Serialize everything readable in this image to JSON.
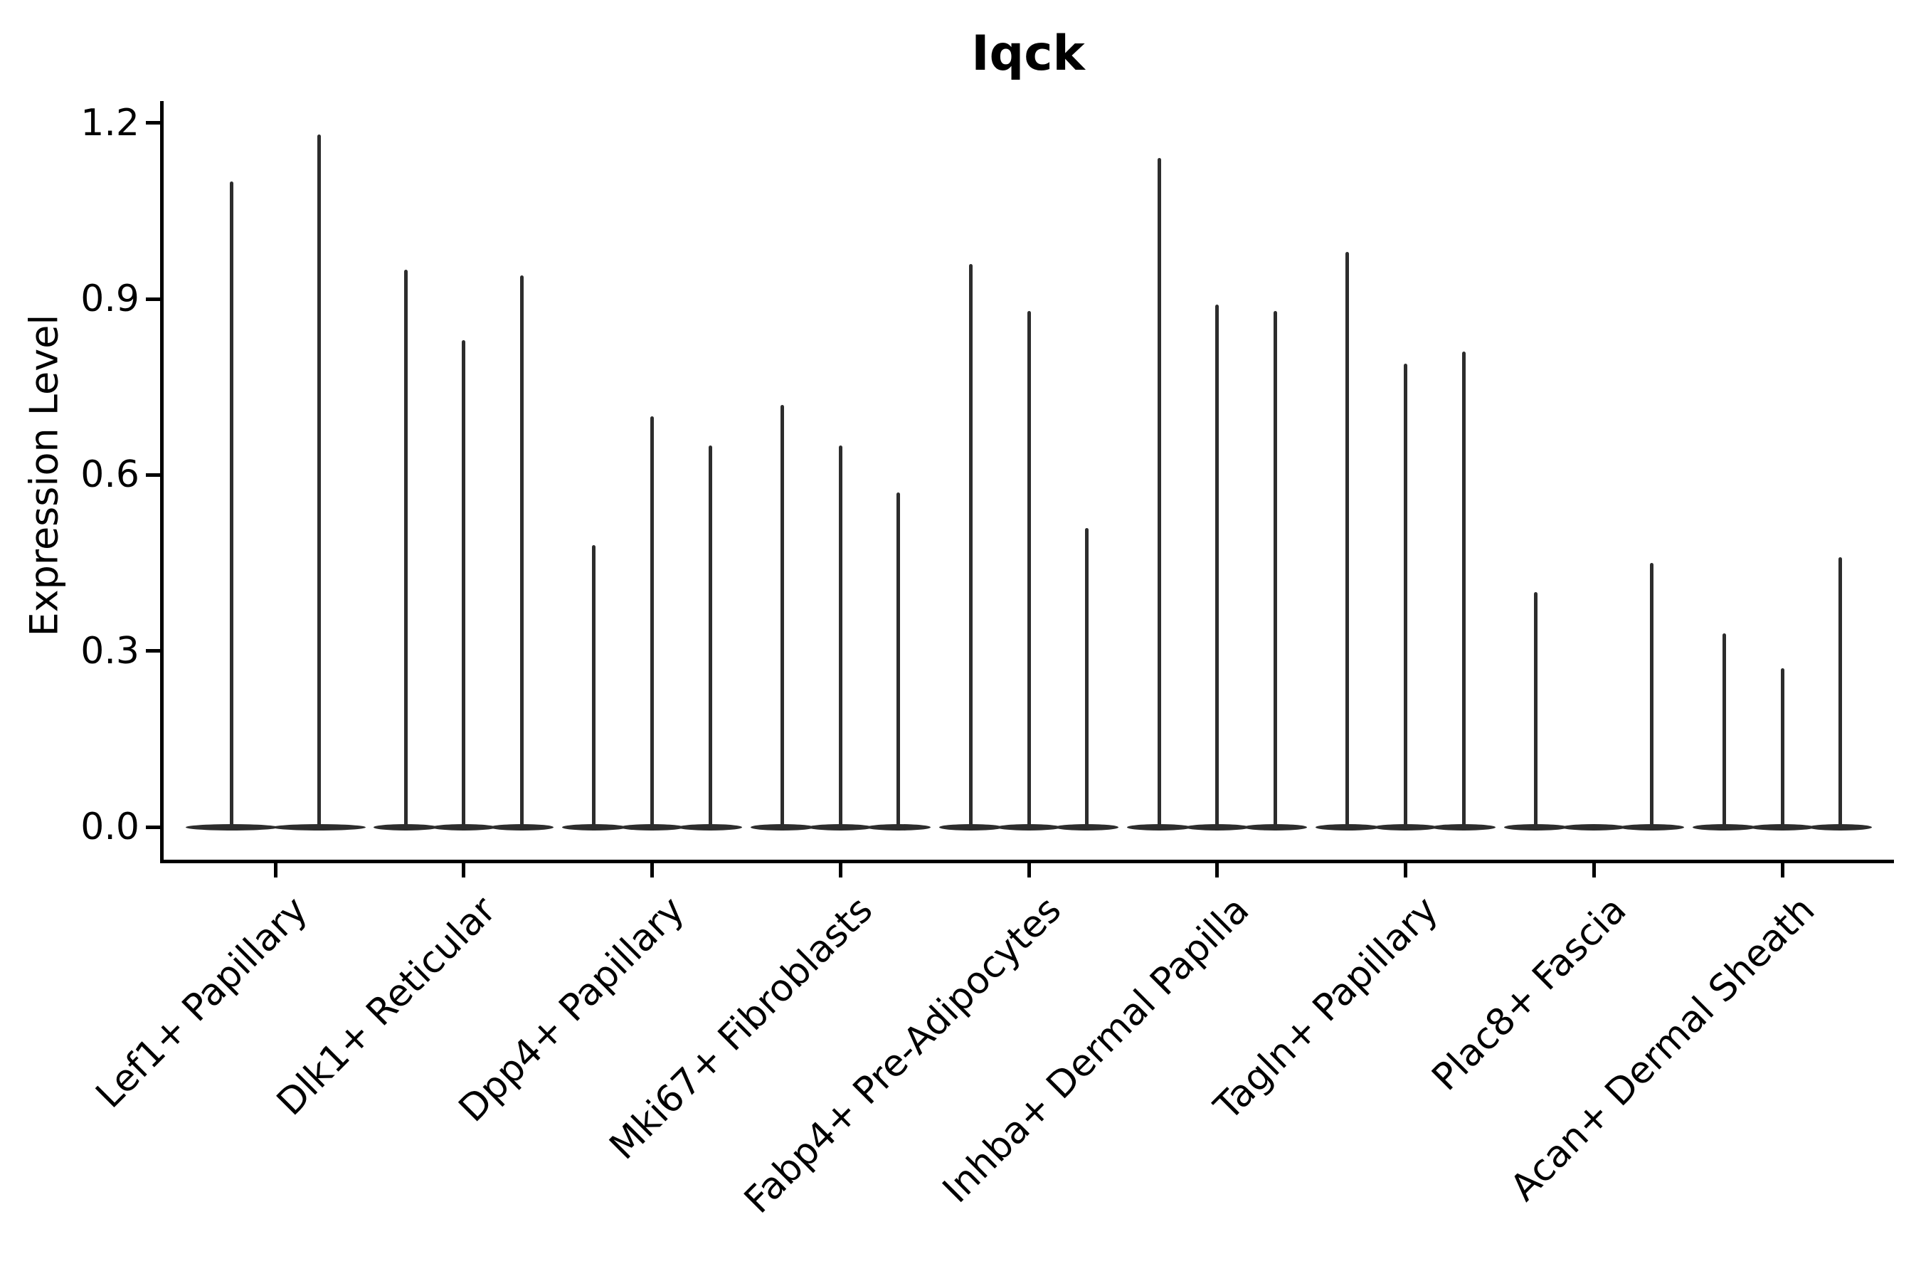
{
  "title": "Iqck",
  "y_axis": {
    "label": "Expression Level",
    "tick_labels": [
      "0.0",
      "0.3",
      "0.6",
      "0.9",
      "1.2"
    ]
  },
  "chart_data": {
    "type": "violin",
    "title": "Iqck",
    "xlabel": "",
    "ylabel": "Expression Level",
    "ylim": [
      -0.06,
      1.24
    ],
    "yticks": [
      0.0,
      0.3,
      0.6,
      0.9,
      1.2
    ],
    "ytick_labels": [
      "0.0",
      "0.3",
      "0.6",
      "0.9",
      "1.2"
    ],
    "grid": false,
    "legend": "none",
    "description": "Per-category groups of very thin violins (spikes) rising from a flat baseline at 0; spike top = max expression level of each violin.",
    "violin_color": "#2d2d2d",
    "categories": [
      {
        "label": "Lef1+ Papillary",
        "violin_max_values": [
          1.1,
          1.18
        ]
      },
      {
        "label": "Dlk1+ Reticular",
        "violin_max_values": [
          0.95,
          0.83,
          0.94
        ]
      },
      {
        "label": "Dpp4+ Papillary",
        "violin_max_values": [
          0.48,
          0.7,
          0.65
        ]
      },
      {
        "label": "Mki67+ Fibroblasts",
        "violin_max_values": [
          0.72,
          0.65,
          0.57
        ]
      },
      {
        "label": "Fabp4+ Pre-Adipocytes",
        "violin_max_values": [
          0.96,
          0.88,
          0.51
        ]
      },
      {
        "label": "Inhba+ Dermal Papilla",
        "violin_max_values": [
          1.14,
          0.89,
          0.88
        ]
      },
      {
        "label": "Tagln+ Papillary",
        "violin_max_values": [
          0.98,
          0.79,
          0.81
        ]
      },
      {
        "label": "Plac8+ Fascia",
        "violin_max_values": [
          0.4,
          0.0,
          0.45
        ]
      },
      {
        "label": "Acan+ Dermal Sheath",
        "violin_max_values": [
          0.33,
          0.27,
          0.46
        ]
      }
    ]
  }
}
